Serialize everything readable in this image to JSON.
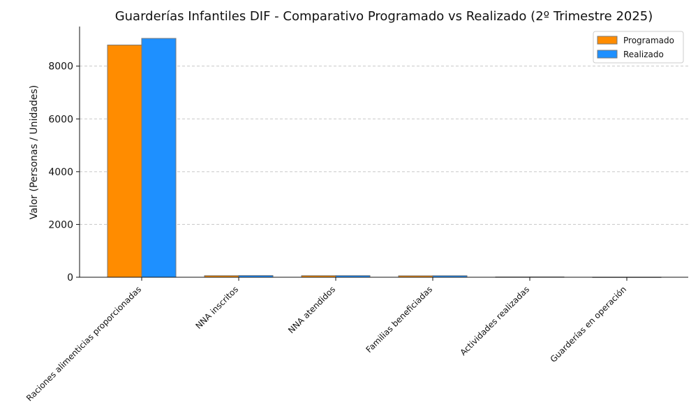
{
  "chart_data": {
    "type": "bar",
    "title": "Guarderías Infantiles DIF - Comparativo Programado vs Realizado (2º Trimestre 2025)",
    "xlabel": "",
    "ylabel": "Valor (Personas / Unidades)",
    "categories": [
      "Raciones alimenticias proporcionadas",
      "NNA inscritos",
      "NNA atendidos",
      "Familias beneficiadas",
      "Actividades realizadas",
      "Guarderías en operación"
    ],
    "series": [
      {
        "name": "Programado",
        "color": "#ff8c00",
        "values": [
          8800,
          60,
          60,
          55,
          10,
          3
        ]
      },
      {
        "name": "Realizado",
        "color": "#1e90ff",
        "values": [
          9050,
          65,
          62,
          58,
          12,
          3
        ]
      }
    ],
    "ylim": [
      0,
      9500
    ],
    "yticks": [
      "0",
      "2000",
      "4000",
      "6000",
      "8000"
    ],
    "ytick_values": [
      0,
      2000,
      4000,
      6000,
      8000
    ],
    "grid": "horizontal dashed",
    "legend_position": "top-right"
  }
}
